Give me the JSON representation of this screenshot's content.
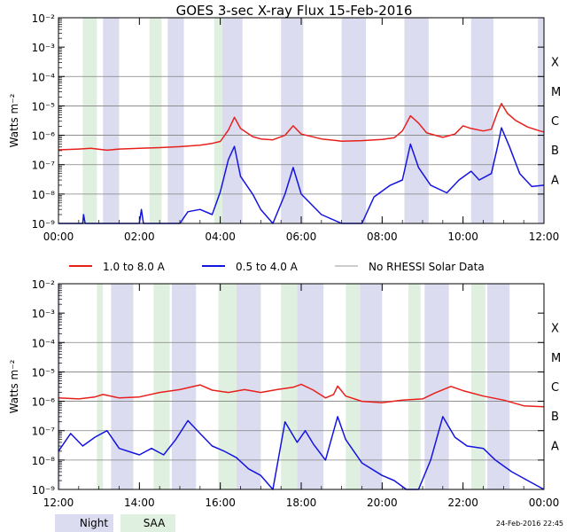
{
  "title": "GOES 3-sec X-ray Flux   15-Feb-2016",
  "legend": {
    "long_label": "1.0 to 8.0 A",
    "short_label": "0.5 to 4.0 A",
    "no_data_label": "No RHESSI Solar Data"
  },
  "key": {
    "night": "Night",
    "saa": "SAA"
  },
  "timestamp": "24-Feb-2016 22:45",
  "colors": {
    "long": "#e8201c",
    "short": "#1414e0",
    "nodata": "#999999",
    "night": "#dcdcf0",
    "saa": "#e0f0e0",
    "grid": "#000000"
  },
  "chart_data": [
    {
      "type": "line",
      "title": "GOES 3-sec X-ray Flux   15-Feb-2016",
      "ylabel": "Watts m⁻²",
      "yscale": "log",
      "ylim": [
        1e-09,
        0.01
      ],
      "xlim_hours": [
        0,
        12
      ],
      "x_ticks": [
        "00:00",
        "02:00",
        "04:00",
        "06:00",
        "08:00",
        "10:00",
        "12:00"
      ],
      "y_ticks": [
        "10⁻⁹",
        "10⁻⁸",
        "10⁻⁷",
        "10⁻⁶",
        "10⁻⁵",
        "10⁻⁴",
        "10⁻³",
        "10⁻²"
      ],
      "flare_classes": [
        {
          "label": "A",
          "exp": -8
        },
        {
          "label": "B",
          "exp": -7
        },
        {
          "label": "C",
          "exp": -6
        },
        {
          "label": "M",
          "exp": -5
        },
        {
          "label": "X",
          "exp": -4
        }
      ],
      "night_hours": [
        [
          1.1,
          1.5
        ],
        [
          2.7,
          3.1
        ],
        [
          4.05,
          4.55
        ],
        [
          5.5,
          6.05
        ],
        [
          7.0,
          7.6
        ],
        [
          8.55,
          9.15
        ],
        [
          10.2,
          10.75
        ],
        [
          11.85,
          12.0
        ]
      ],
      "saa_hours": [
        [
          0.6,
          0.95
        ],
        [
          2.25,
          2.55
        ],
        [
          3.85,
          4.05
        ]
      ],
      "series": [
        {
          "name": "1.0 to 8.0 A",
          "points": [
            [
              0,
              3.2e-07
            ],
            [
              0.5,
              3.4e-07
            ],
            [
              0.8,
              3.6e-07
            ],
            [
              1.2,
              3.1e-07
            ],
            [
              1.5,
              3.4e-07
            ],
            [
              2.0,
              3.6e-07
            ],
            [
              2.5,
              3.8e-07
            ],
            [
              3.0,
              4.1e-07
            ],
            [
              3.5,
              4.6e-07
            ],
            [
              3.8,
              5.3e-07
            ],
            [
              4.0,
              6.2e-07
            ],
            [
              4.2,
              1.5e-06
            ],
            [
              4.35,
              4.1e-06
            ],
            [
              4.5,
              1.7e-06
            ],
            [
              4.8,
              9e-07
            ],
            [
              5.0,
              7.5e-07
            ],
            [
              5.3,
              7e-07
            ],
            [
              5.6,
              1e-06
            ],
            [
              5.8,
              2.1e-06
            ],
            [
              6.0,
              1.1e-06
            ],
            [
              6.5,
              7.5e-07
            ],
            [
              7.0,
              6.3e-07
            ],
            [
              7.5,
              6.6e-07
            ],
            [
              8.0,
              7.2e-07
            ],
            [
              8.3,
              8.2e-07
            ],
            [
              8.5,
              1.4e-06
            ],
            [
              8.7,
              4.6e-06
            ],
            [
              8.9,
              2.6e-06
            ],
            [
              9.1,
              1.2e-06
            ],
            [
              9.5,
              8.5e-07
            ],
            [
              9.8,
              1.1e-06
            ],
            [
              10.0,
              2.1e-06
            ],
            [
              10.2,
              1.7e-06
            ],
            [
              10.5,
              1.4e-06
            ],
            [
              10.7,
              1.6e-06
            ],
            [
              10.85,
              6e-06
            ],
            [
              10.95,
              1.2e-05
            ],
            [
              11.1,
              5.5e-06
            ],
            [
              11.3,
              3.2e-06
            ],
            [
              11.6,
              1.9e-06
            ],
            [
              11.9,
              1.4e-06
            ],
            [
              12.0,
              1.3e-06
            ]
          ]
        },
        {
          "name": "0.5 to 4.0 A",
          "points": [
            [
              0,
              1e-09
            ],
            [
              0.6,
              1e-09
            ],
            [
              0.62,
              2e-09
            ],
            [
              0.66,
              1e-09
            ],
            [
              2.0,
              1e-09
            ],
            [
              2.05,
              3e-09
            ],
            [
              2.1,
              1e-09
            ],
            [
              3.0,
              1e-09
            ],
            [
              3.2,
              2.5e-09
            ],
            [
              3.5,
              3e-09
            ],
            [
              3.8,
              2e-09
            ],
            [
              4.0,
              1.2e-08
            ],
            [
              4.2,
              1.5e-07
            ],
            [
              4.35,
              4.2e-07
            ],
            [
              4.5,
              4e-08
            ],
            [
              4.8,
              1e-08
            ],
            [
              5.0,
              3e-09
            ],
            [
              5.3,
              1e-09
            ],
            [
              5.6,
              1e-08
            ],
            [
              5.8,
              8e-08
            ],
            [
              6.0,
              1e-08
            ],
            [
              6.5,
              2e-09
            ],
            [
              7.0,
              1e-09
            ],
            [
              7.5,
              1e-09
            ],
            [
              7.8,
              8e-09
            ],
            [
              8.2,
              2e-08
            ],
            [
              8.5,
              3e-08
            ],
            [
              8.7,
              5e-07
            ],
            [
              8.9,
              8e-08
            ],
            [
              9.2,
              2e-08
            ],
            [
              9.6,
              1.1e-08
            ],
            [
              9.9,
              3e-08
            ],
            [
              10.2,
              6e-08
            ],
            [
              10.4,
              3e-08
            ],
            [
              10.7,
              5e-08
            ],
            [
              10.85,
              4e-07
            ],
            [
              10.95,
              1.8e-06
            ],
            [
              11.15,
              4e-07
            ],
            [
              11.4,
              5e-08
            ],
            [
              11.7,
              1.8e-08
            ],
            [
              12.0,
              2e-08
            ]
          ]
        }
      ]
    },
    {
      "type": "line",
      "ylabel": "Watts m⁻²",
      "yscale": "log",
      "ylim": [
        1e-09,
        0.01
      ],
      "xlim_hours": [
        12,
        24
      ],
      "x_ticks": [
        "12:00",
        "14:00",
        "16:00",
        "18:00",
        "20:00",
        "22:00",
        "00:00"
      ],
      "y_ticks": [
        "10⁻⁹",
        "10⁻⁸",
        "10⁻⁷",
        "10⁻⁶",
        "10⁻⁵",
        "10⁻⁴",
        "10⁻³",
        "10⁻²"
      ],
      "flare_classes": [
        {
          "label": "A",
          "exp": -8
        },
        {
          "label": "B",
          "exp": -7
        },
        {
          "label": "C",
          "exp": -6
        },
        {
          "label": "M",
          "exp": -5
        },
        {
          "label": "X",
          "exp": -4
        }
      ],
      "night_hours": [
        [
          12.0,
          12.05
        ],
        [
          13.3,
          13.85
        ],
        [
          14.8,
          15.4
        ],
        [
          16.4,
          17.0
        ],
        [
          17.9,
          18.55
        ],
        [
          19.45,
          20.0
        ],
        [
          21.05,
          21.65
        ],
        [
          22.6,
          23.15
        ]
      ],
      "saa_hours": [
        [
          12.95,
          13.1
        ],
        [
          14.35,
          14.75
        ],
        [
          15.95,
          16.4
        ],
        [
          17.5,
          17.9
        ],
        [
          19.1,
          19.45
        ],
        [
          20.65,
          20.95
        ],
        [
          22.2,
          22.55
        ]
      ],
      "series": [
        {
          "name": "1.0 to 8.0 A",
          "points": [
            [
              12.0,
              1.3e-06
            ],
            [
              12.5,
              1.2e-06
            ],
            [
              12.9,
              1.4e-06
            ],
            [
              13.1,
              1.7e-06
            ],
            [
              13.5,
              1.3e-06
            ],
            [
              14.0,
              1.4e-06
            ],
            [
              14.5,
              2e-06
            ],
            [
              15.0,
              2.5e-06
            ],
            [
              15.5,
              3.6e-06
            ],
            [
              15.8,
              2.4e-06
            ],
            [
              16.2,
              2e-06
            ],
            [
              16.6,
              2.5e-06
            ],
            [
              17.0,
              2e-06
            ],
            [
              17.4,
              2.5e-06
            ],
            [
              17.8,
              3e-06
            ],
            [
              18.0,
              3.8e-06
            ],
            [
              18.3,
              2.4e-06
            ],
            [
              18.6,
              1.3e-06
            ],
            [
              18.8,
              1.7e-06
            ],
            [
              18.9,
              3.3e-06
            ],
            [
              19.1,
              1.5e-06
            ],
            [
              19.5,
              1e-06
            ],
            [
              20.0,
              9e-07
            ],
            [
              20.5,
              1.1e-06
            ],
            [
              21.0,
              1.2e-06
            ],
            [
              21.3,
              1.9e-06
            ],
            [
              21.7,
              3.2e-06
            ],
            [
              22.0,
              2.3e-06
            ],
            [
              22.5,
              1.5e-06
            ],
            [
              23.0,
              1.1e-06
            ],
            [
              23.5,
              7e-07
            ],
            [
              24.0,
              6.5e-07
            ]
          ]
        },
        {
          "name": "0.5 to 4.0 A",
          "points": [
            [
              12.0,
              2e-08
            ],
            [
              12.3,
              8e-08
            ],
            [
              12.6,
              3e-08
            ],
            [
              12.9,
              6e-08
            ],
            [
              13.2,
              1e-07
            ],
            [
              13.5,
              2.5e-08
            ],
            [
              14.0,
              1.5e-08
            ],
            [
              14.3,
              2.5e-08
            ],
            [
              14.6,
              1.5e-08
            ],
            [
              14.9,
              5e-08
            ],
            [
              15.2,
              2.2e-07
            ],
            [
              15.5,
              8e-08
            ],
            [
              15.8,
              3e-08
            ],
            [
              16.1,
              2e-08
            ],
            [
              16.4,
              1.2e-08
            ],
            [
              16.7,
              5e-09
            ],
            [
              17.0,
              3e-09
            ],
            [
              17.3,
              1e-09
            ],
            [
              17.6,
              2e-07
            ],
            [
              17.9,
              4e-08
            ],
            [
              18.1,
              1e-07
            ],
            [
              18.3,
              3.5e-08
            ],
            [
              18.6,
              1e-08
            ],
            [
              18.9,
              3e-07
            ],
            [
              19.1,
              5e-08
            ],
            [
              19.5,
              8e-09
            ],
            [
              20.0,
              3e-09
            ],
            [
              20.3,
              2e-09
            ],
            [
              20.6,
              1e-09
            ],
            [
              20.9,
              1e-09
            ],
            [
              21.2,
              1e-08
            ],
            [
              21.5,
              3e-07
            ],
            [
              21.8,
              6e-08
            ],
            [
              22.1,
              3e-08
            ],
            [
              22.5,
              2.5e-08
            ],
            [
              22.8,
              1e-08
            ],
            [
              23.2,
              4e-09
            ],
            [
              23.6,
              2e-09
            ],
            [
              24.0,
              1e-09
            ]
          ]
        }
      ]
    }
  ]
}
